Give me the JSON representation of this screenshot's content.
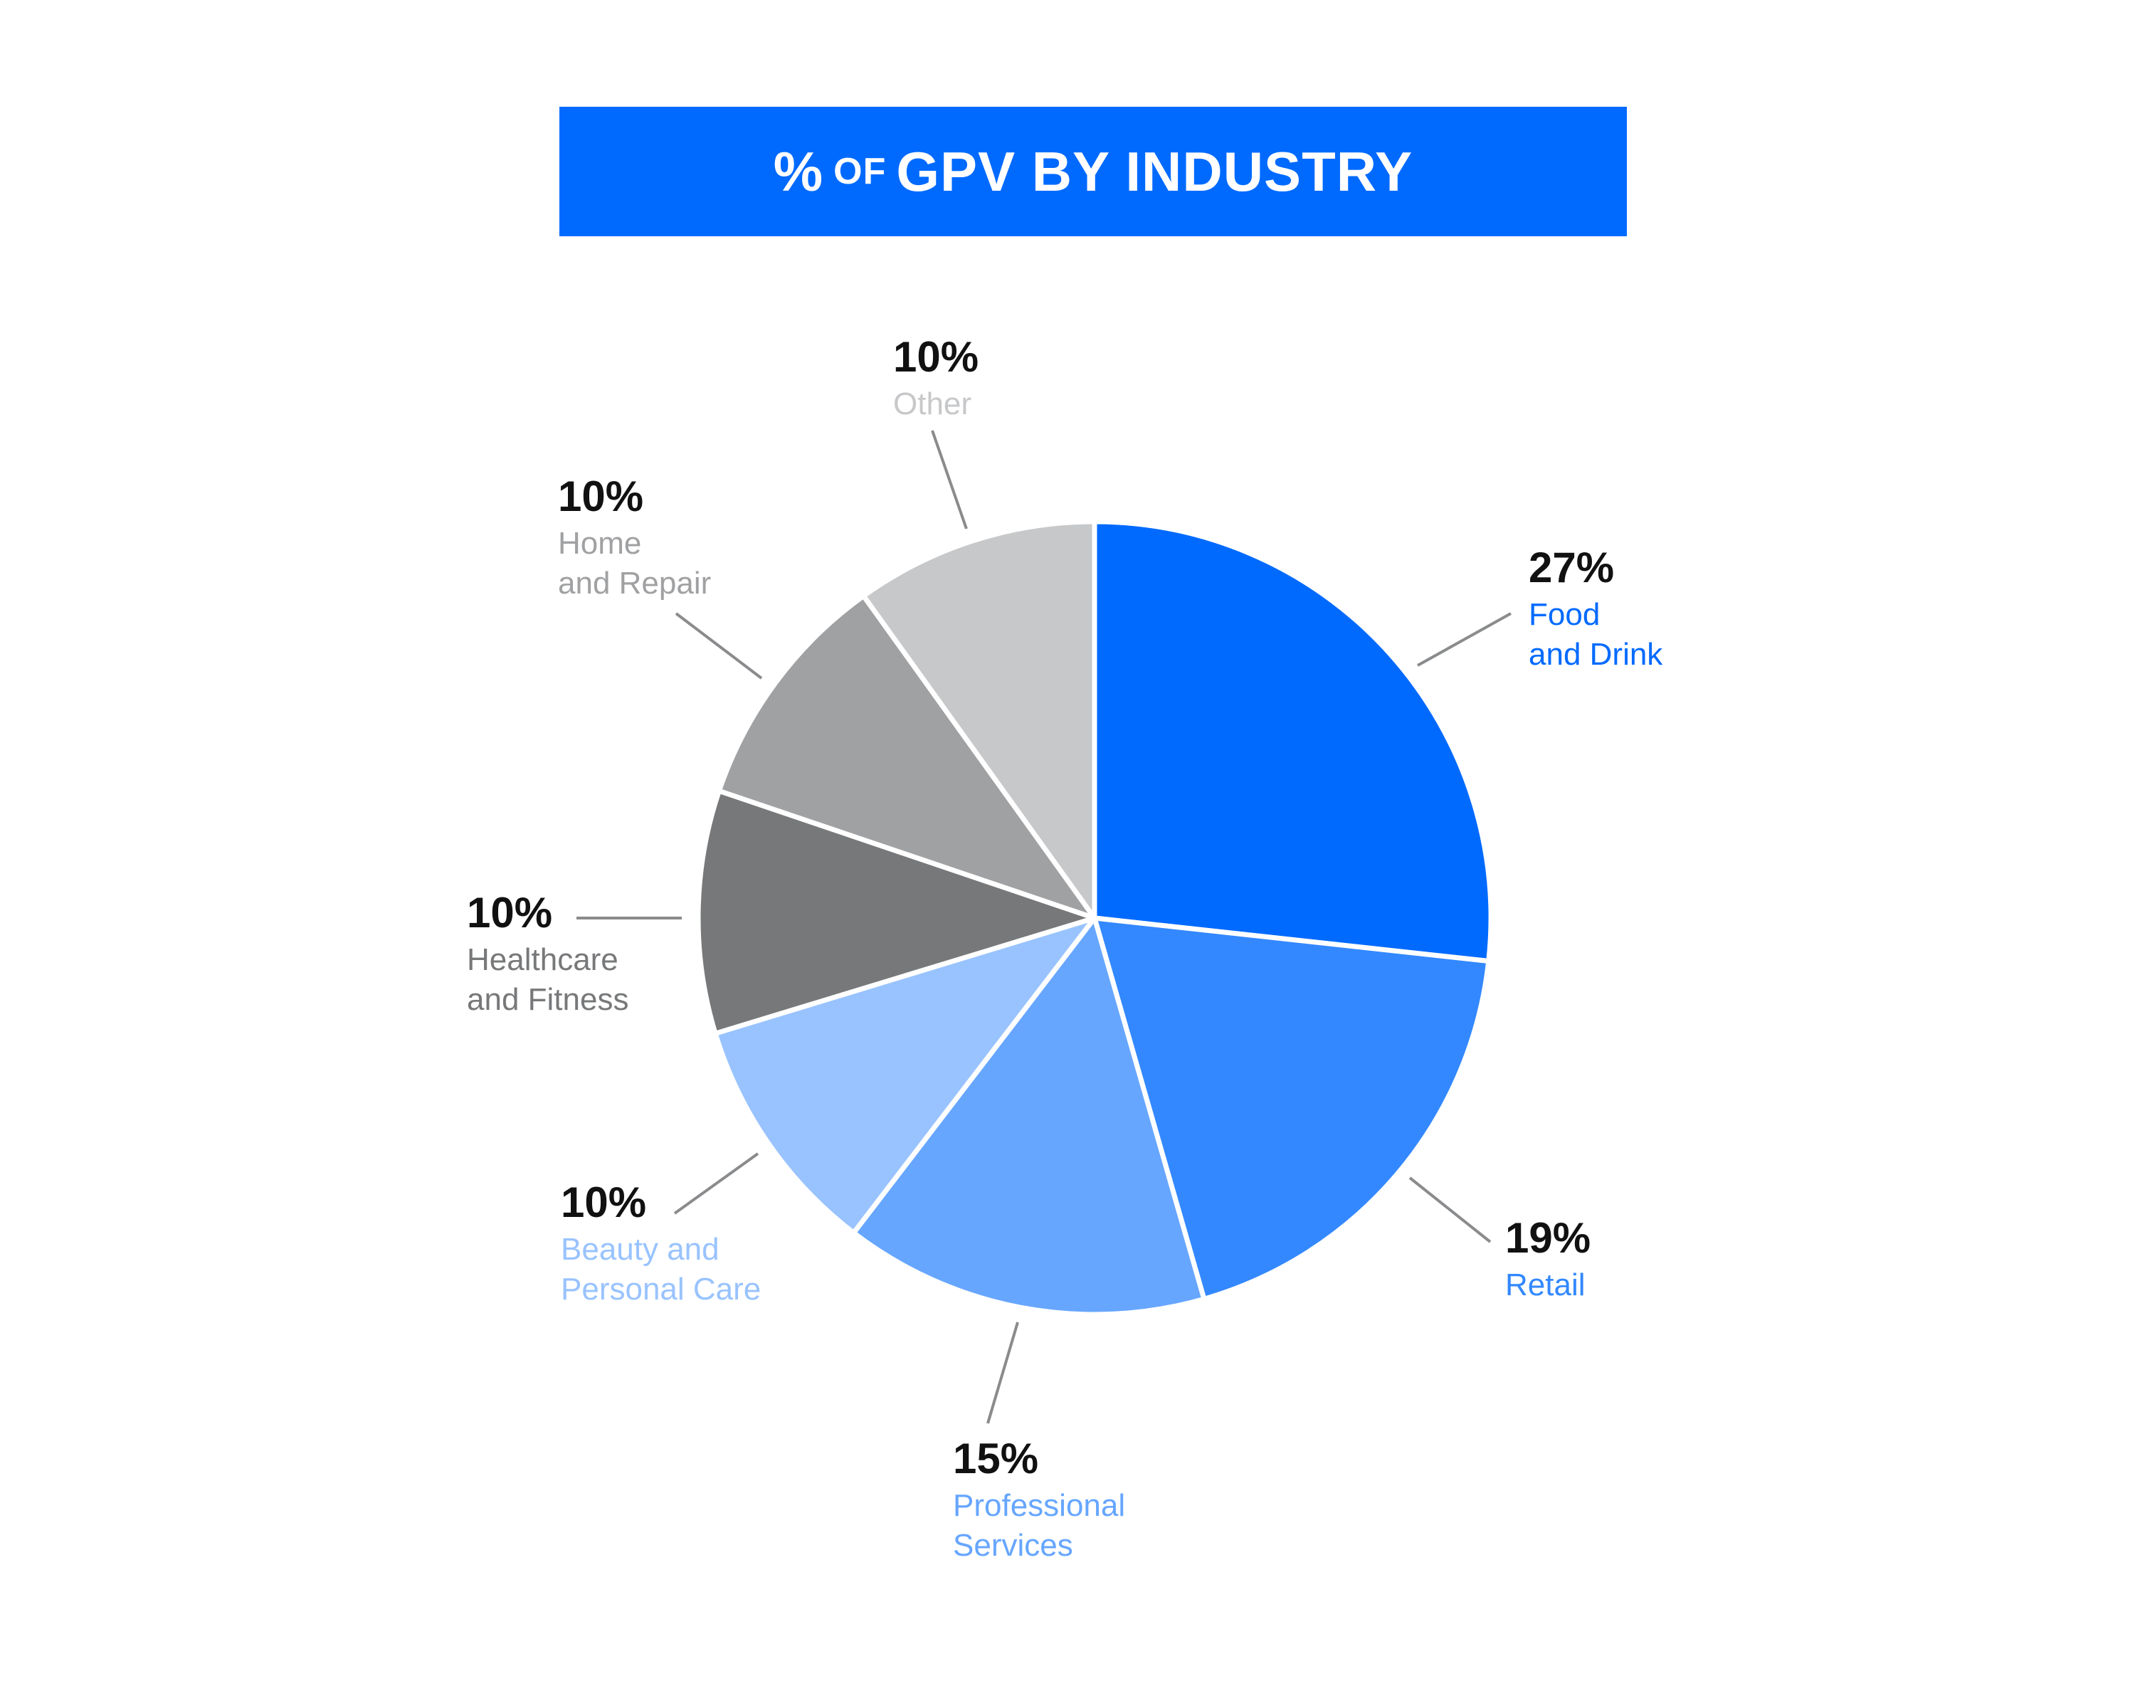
{
  "title": {
    "pre": "%",
    "small": "OF",
    "post": "GPV BY INDUSTRY"
  },
  "chart_data": {
    "type": "pie",
    "title": "% OF GPV BY INDUSTRY",
    "slices": [
      {
        "label": "Food\nand Drink",
        "value": 27,
        "display": "27%",
        "color": "#006aff",
        "label_color": "#006aff"
      },
      {
        "label": "Retail",
        "value": 19,
        "display": "19%",
        "color": "#3388ff",
        "label_color": "#3388ff"
      },
      {
        "label": "Professional\nServices",
        "value": 15,
        "display": "15%",
        "color": "#66a6ff",
        "label_color": "#66a6ff"
      },
      {
        "label": "Beauty and\nPersonal Care",
        "value": 10,
        "display": "10%",
        "color": "#99c3ff",
        "label_color": "#99c3ff"
      },
      {
        "label": "Healthcare\nand Fitness",
        "value": 10,
        "display": "10%",
        "color": "#77787a",
        "label_color": "#77787a"
      },
      {
        "label": "Home\nand Repair",
        "value": 10,
        "display": "10%",
        "color": "#a0a1a3",
        "label_color": "#a0a1a3"
      },
      {
        "label": "Other",
        "value": 10,
        "display": "10%",
        "color": "#c7c8ca",
        "label_color": "#c7c8ca"
      }
    ],
    "leader_line_color": "#8a8b8d",
    "legend": "none"
  }
}
